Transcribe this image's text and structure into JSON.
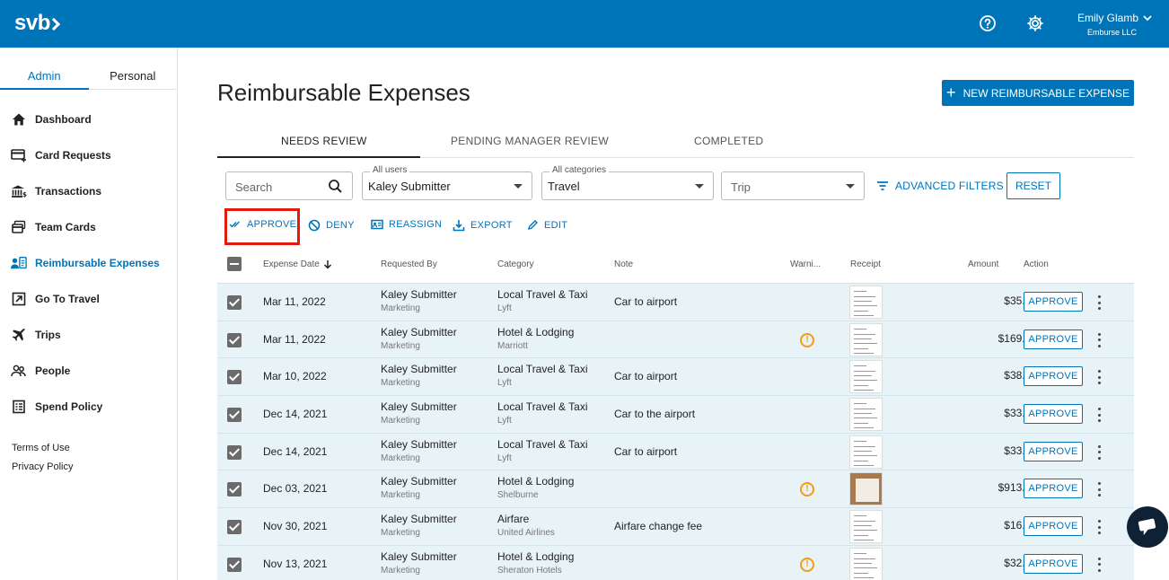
{
  "header": {
    "logo_text": "svb",
    "user_name": "Emily Glamb",
    "user_org": "Emburse LLC",
    "help_icon": "help-circle-icon",
    "settings_icon": "gear-icon",
    "brand_color": "#0074b8"
  },
  "sidebar": {
    "tabs": [
      {
        "label": "Admin",
        "active": true
      },
      {
        "label": "Personal",
        "active": false
      }
    ],
    "items": [
      {
        "label": "Dashboard",
        "icon": "home-icon"
      },
      {
        "label": "Card Requests",
        "icon": "card-add-icon"
      },
      {
        "label": "Transactions",
        "icon": "bank-icon"
      },
      {
        "label": "Team Cards",
        "icon": "cards-icon"
      },
      {
        "label": "Reimbursable Expenses",
        "icon": "people-receipt-icon",
        "active": true
      },
      {
        "label": "Go To Travel",
        "icon": "external-link-icon"
      },
      {
        "label": "Trips",
        "icon": "airplane-icon"
      },
      {
        "label": "People",
        "icon": "people-icon"
      },
      {
        "label": "Spend Policy",
        "icon": "policy-icon"
      }
    ],
    "footer": {
      "terms": "Terms of Use",
      "privacy": "Privacy Policy"
    }
  },
  "main": {
    "title": "Reimbursable Expenses",
    "new_button": "NEW REIMBURSABLE EXPENSE",
    "tabs": [
      {
        "label": "NEEDS REVIEW",
        "active": true
      },
      {
        "label": "PENDING MANAGER REVIEW",
        "active": false
      },
      {
        "label": "COMPLETED",
        "active": false
      }
    ],
    "filters": {
      "search_placeholder": "Search",
      "users_label": "All users",
      "users_value": "Kaley Submitter",
      "categories_label": "All categories",
      "categories_value": "Travel",
      "trip_placeholder": "Trip",
      "advanced": "ADVANCED FILTERS",
      "reset": "RESET"
    },
    "actions": {
      "approve": "APPROVE",
      "deny": "DENY",
      "reassign": "REASSIGN",
      "export": "EXPORT",
      "edit": "EDIT"
    },
    "table": {
      "headers": {
        "date": "Expense Date",
        "requested_by": "Requested By",
        "category": "Category",
        "note": "Note",
        "warning": "Warni...",
        "receipt": "Receipt",
        "amount": "Amount",
        "action": "Action"
      },
      "row_action": "APPROVE",
      "rows": [
        {
          "date": "Mar 11, 2022",
          "name": "Kaley Submitter",
          "dept": "Marketing",
          "category": "Local Travel & Taxi",
          "merchant": "Lyft",
          "note": "Car to airport",
          "warning": false,
          "receipt": "doc",
          "amount": "$35.25"
        },
        {
          "date": "Mar 11, 2022",
          "name": "Kaley Submitter",
          "dept": "Marketing",
          "category": "Hotel & Lodging",
          "merchant": "Marriott",
          "note": "",
          "warning": true,
          "receipt": "doc",
          "amount": "$169.00"
        },
        {
          "date": "Mar 10, 2022",
          "name": "Kaley Submitter",
          "dept": "Marketing",
          "category": "Local Travel & Taxi",
          "merchant": "Lyft",
          "note": "Car to airport",
          "warning": false,
          "receipt": "doc",
          "amount": "$38.21"
        },
        {
          "date": "Dec 14, 2021",
          "name": "Kaley Submitter",
          "dept": "Marketing",
          "category": "Local Travel & Taxi",
          "merchant": "Lyft",
          "note": "Car to the airport",
          "warning": false,
          "receipt": "doc",
          "amount": "$33.25"
        },
        {
          "date": "Dec 14, 2021",
          "name": "Kaley Submitter",
          "dept": "Marketing",
          "category": "Local Travel & Taxi",
          "merchant": "Lyft",
          "note": "Car to airport",
          "warning": false,
          "receipt": "doc",
          "amount": "$33.25"
        },
        {
          "date": "Dec 03, 2021",
          "name": "Kaley Submitter",
          "dept": "Marketing",
          "category": "Hotel & Lodging",
          "merchant": "Shelburne",
          "note": "",
          "warning": true,
          "receipt": "photo",
          "amount": "$913.50"
        },
        {
          "date": "Nov 30, 2021",
          "name": "Kaley Submitter",
          "dept": "Marketing",
          "category": "Airfare",
          "merchant": "United Airlines",
          "note": "Airfare change fee",
          "warning": false,
          "receipt": "doc",
          "amount": "$16.99"
        },
        {
          "date": "Nov 13, 2021",
          "name": "Kaley Submitter",
          "dept": "Marketing",
          "category": "Hotel & Lodging",
          "merchant": "Sheraton Hotels",
          "note": "",
          "warning": true,
          "receipt": "doc",
          "amount": "$32.30"
        }
      ]
    }
  },
  "chat": {
    "icon": "chat-bubble-icon"
  }
}
